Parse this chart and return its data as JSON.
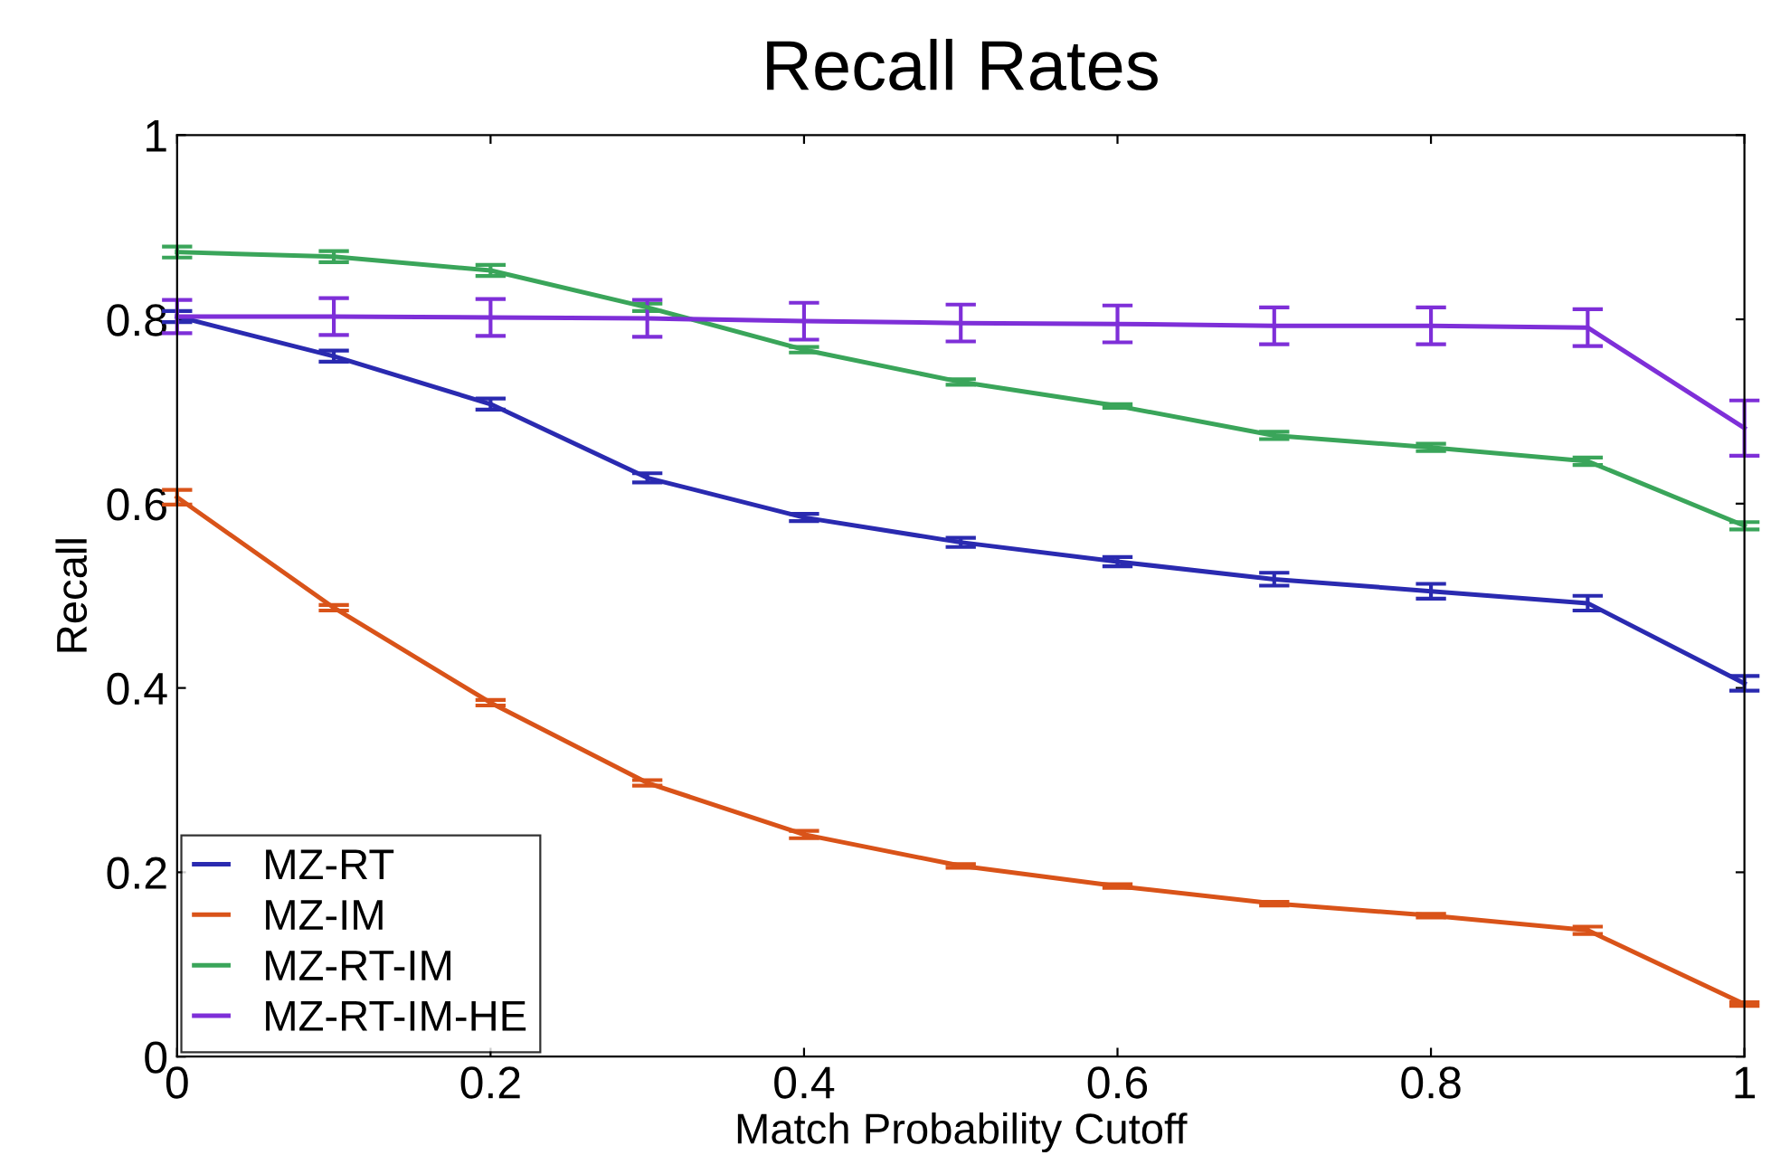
{
  "chart_data": {
    "type": "line",
    "title": "Recall Rates",
    "xlabel": "Match Probability Cutoff",
    "ylabel": "Recall",
    "x": [
      0,
      0.1,
      0.2,
      0.3,
      0.4,
      0.5,
      0.6,
      0.7,
      0.8,
      0.9,
      1
    ],
    "xlim": [
      0,
      1
    ],
    "xticks": [
      0,
      0.2,
      0.4,
      0.6,
      0.8,
      1
    ],
    "ylim": [
      0,
      1
    ],
    "yticks": [
      0,
      0.2,
      0.4,
      0.6,
      0.8,
      1
    ],
    "grid": false,
    "legend": "bottom left",
    "marker": "none",
    "line_style": "solid",
    "series": [
      {
        "name": "MZ-RT",
        "color": "#2a2ab0",
        "values": [
          0.803,
          0.76,
          0.708,
          0.628,
          0.585,
          0.558,
          0.537,
          0.518,
          0.505,
          0.492,
          0.405
        ],
        "errors": [
          0.006,
          0.006,
          0.006,
          0.005,
          0.004,
          0.005,
          0.005,
          0.007,
          0.008,
          0.008,
          0.008
        ]
      },
      {
        "name": "MZ-IM",
        "color": "#d95319",
        "values": [
          0.607,
          0.487,
          0.384,
          0.297,
          0.241,
          0.207,
          0.185,
          0.166,
          0.153,
          0.137,
          0.057
        ],
        "errors": [
          0.008,
          0.003,
          0.003,
          0.003,
          0.004,
          0.002,
          0.002,
          0.002,
          0.002,
          0.004,
          0.002
        ]
      },
      {
        "name": "MZ-RT-IM",
        "color": "#3aa55a",
        "values": [
          0.873,
          0.868,
          0.853,
          0.813,
          0.767,
          0.732,
          0.706,
          0.674,
          0.661,
          0.646,
          0.576
        ],
        "errors": [
          0.006,
          0.006,
          0.006,
          0.004,
          0.003,
          0.003,
          0.002,
          0.004,
          0.004,
          0.004,
          0.004
        ]
      },
      {
        "name": "MZ-RT-IM-HE",
        "color": "#7e2fd8",
        "values": [
          0.803,
          0.803,
          0.802,
          0.801,
          0.798,
          0.796,
          0.795,
          0.793,
          0.793,
          0.791,
          0.682
        ],
        "errors": [
          0.018,
          0.02,
          0.02,
          0.02,
          0.02,
          0.02,
          0.02,
          0.02,
          0.02,
          0.02,
          0.03
        ]
      }
    ]
  }
}
